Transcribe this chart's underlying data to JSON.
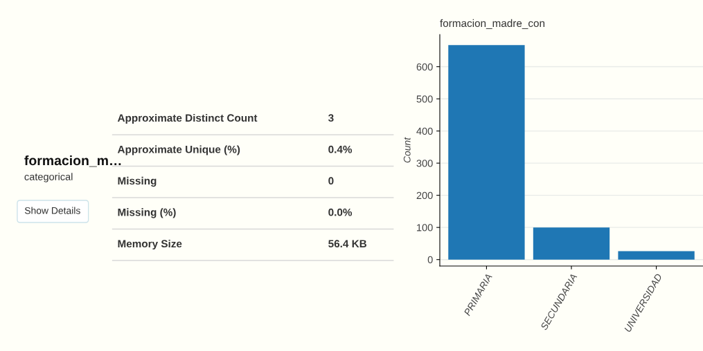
{
  "chart_data": [
    {
      "type": "other",
      "title": "formacion_m…",
      "subtitle": "categorical",
      "annotations": [
        "Show Details",
        "Approximate Distinct Count",
        "3",
        "Approximate Unique (%)",
        "0.4%",
        "Missing",
        "0",
        "Missing (%)",
        "0.0%",
        "Memory Size",
        "56.4 KB"
      ]
    },
    {
      "type": "bar",
      "title": "formacion_madre_con",
      "ylabel": "Count",
      "categories": [
        "PRIMARIA",
        "SECUNDARIA",
        "UNIVERSIDAD"
      ],
      "values": [
        667,
        100,
        26
      ],
      "color": "#1f77b4",
      "ylim": [
        -20,
        700
      ],
      "yticks": [
        0,
        100,
        200,
        300,
        400,
        500,
        600
      ],
      "grid": "y"
    }
  ]
}
